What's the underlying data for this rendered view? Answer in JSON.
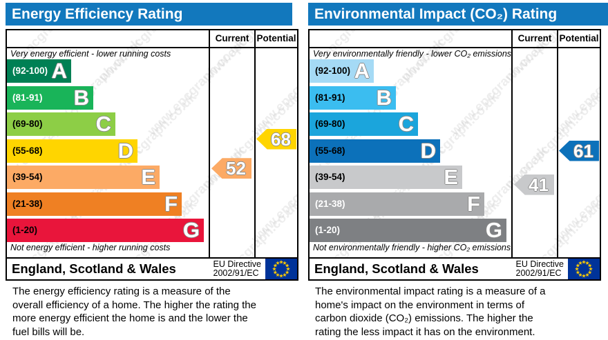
{
  "watermark": "www.epcgraph.co.uk",
  "colors": {
    "header_bar": "#1278bd",
    "border": "#000000",
    "flag_bg": "#003399",
    "flag_stars": "#ffcc00"
  },
  "chart_data": [
    {
      "type": "bar",
      "title": "Energy Efficiency Rating",
      "categories": [
        "A (92-100)",
        "B (81-91)",
        "C (69-80)",
        "D (55-68)",
        "E (39-54)",
        "F (21-38)",
        "G (1-20)"
      ],
      "band_colors": [
        "#008054",
        "#19b459",
        "#8dce46",
        "#ffd500",
        "#fcaa65",
        "#ef8023",
        "#e9153b"
      ],
      "current_value": 52,
      "current_band": "E",
      "potential_value": 68,
      "potential_band": "D",
      "top_caption": "Very energy efficient - lower running costs",
      "bottom_caption": "Not energy efficient - higher running costs"
    },
    {
      "type": "bar",
      "title": "Environmental Impact (CO₂) Rating",
      "categories": [
        "A (92-100)",
        "B (81-91)",
        "C (69-80)",
        "D (55-68)",
        "E (39-54)",
        "F (21-38)",
        "G (1-20)"
      ],
      "band_colors": [
        "#a5daf5",
        "#3bbdf0",
        "#1ba5dc",
        "#0c71ba",
        "#c8c9cb",
        "#a9aaac",
        "#7e8083"
      ],
      "current_value": 41,
      "current_band": "E",
      "potential_value": 61,
      "potential_band": "D",
      "top_caption": "Very environmentally friendly - lower CO₂ emissions",
      "bottom_caption": "Not environmentally friendly - higher CO₂ emissions"
    }
  ],
  "panels": [
    {
      "title": "Energy Efficiency Rating",
      "columns": [
        "Current",
        "Potential"
      ],
      "top_caption": "Very energy efficient - lower running costs",
      "bottom_caption": "Not energy efficient - higher running costs",
      "bands": [
        {
          "letter": "A",
          "range": "(92-100)",
          "min": 92,
          "max": 100,
          "color": "#008054",
          "label_color": "#ffffff"
        },
        {
          "letter": "B",
          "range": "(81-91)",
          "min": 81,
          "max": 91,
          "color": "#19b459",
          "label_color": "#ffffff"
        },
        {
          "letter": "C",
          "range": "(69-80)",
          "min": 69,
          "max": 80,
          "color": "#8dce46",
          "label_color": "#000000"
        },
        {
          "letter": "D",
          "range": "(55-68)",
          "min": 55,
          "max": 68,
          "color": "#ffd500",
          "label_color": "#000000"
        },
        {
          "letter": "E",
          "range": "(39-54)",
          "min": 39,
          "max": 54,
          "color": "#fcaa65",
          "label_color": "#000000"
        },
        {
          "letter": "F",
          "range": "(21-38)",
          "min": 21,
          "max": 38,
          "color": "#ef8023",
          "label_color": "#000000"
        },
        {
          "letter": "G",
          "range": "(1-20)",
          "min": 1,
          "max": 20,
          "color": "#e9153b",
          "label_color": "#000000"
        }
      ],
      "current": {
        "value": 52,
        "band": "E",
        "color": "#fcaa65"
      },
      "potential": {
        "value": 68,
        "band": "D",
        "color": "#ffd500"
      },
      "footer": {
        "region": "England, Scotland & Wales",
        "directive_line1": "EU Directive",
        "directive_line2": "2002/91/EC"
      },
      "description": "The energy efficiency rating is a measure of the overall efficiency of a home. The higher the rating the more energy efficient the home is and the lower the fuel bills will be."
    },
    {
      "title": "Environmental Impact (CO₂) Rating",
      "columns": [
        "Current",
        "Potential"
      ],
      "top_caption": "Very environmentally friendly - lower CO₂ emissions",
      "bottom_caption": "Not environmentally friendly - higher CO₂ emissions",
      "bands": [
        {
          "letter": "A",
          "range": "(92-100)",
          "min": 92,
          "max": 100,
          "color": "#a5daf5",
          "label_color": "#000000"
        },
        {
          "letter": "B",
          "range": "(81-91)",
          "min": 81,
          "max": 91,
          "color": "#3bbdf0",
          "label_color": "#000000"
        },
        {
          "letter": "C",
          "range": "(69-80)",
          "min": 69,
          "max": 80,
          "color": "#1ba5dc",
          "label_color": "#000000"
        },
        {
          "letter": "D",
          "range": "(55-68)",
          "min": 55,
          "max": 68,
          "color": "#0c71ba",
          "label_color": "#000000"
        },
        {
          "letter": "E",
          "range": "(39-54)",
          "min": 39,
          "max": 54,
          "color": "#c8c9cb",
          "label_color": "#000000"
        },
        {
          "letter": "F",
          "range": "(21-38)",
          "min": 21,
          "max": 38,
          "color": "#a9aaac",
          "label_color": "#ffffff"
        },
        {
          "letter": "G",
          "range": "(1-20)",
          "min": 1,
          "max": 20,
          "color": "#7e8083",
          "label_color": "#ffffff"
        }
      ],
      "current": {
        "value": 41,
        "band": "E",
        "color": "#c8c9cb"
      },
      "potential": {
        "value": 61,
        "band": "D",
        "color": "#0c71ba"
      },
      "footer": {
        "region": "England, Scotland & Wales",
        "directive_line1": "EU Directive",
        "directive_line2": "2002/91/EC"
      },
      "description": "The environmental impact rating is a measure of a home's impact on the environment in terms of carbon dioxide (CO₂) emissions. The higher the rating the less impact it has on the environment."
    }
  ]
}
